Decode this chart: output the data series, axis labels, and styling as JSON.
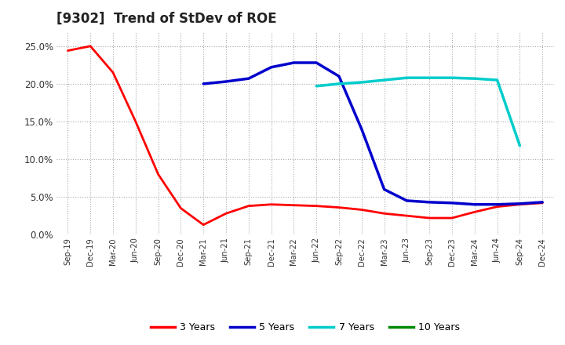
{
  "title": "[9302]  Trend of StDev of ROE",
  "background_color": "#ffffff",
  "plot_background_color": "#ffffff",
  "grid_color": "#aaaaaa",
  "x_labels": [
    "Sep-19",
    "Dec-19",
    "Mar-20",
    "Jun-20",
    "Sep-20",
    "Dec-20",
    "Mar-21",
    "Jun-21",
    "Sep-21",
    "Dec-21",
    "Mar-22",
    "Jun-22",
    "Sep-22",
    "Dec-22",
    "Mar-23",
    "Jun-23",
    "Sep-23",
    "Dec-23",
    "Mar-24",
    "Jun-24",
    "Sep-24",
    "Dec-24"
  ],
  "series": {
    "3 Years": {
      "color": "#ff0000",
      "linewidth": 2.0,
      "values": [
        0.244,
        0.25,
        0.215,
        0.15,
        0.08,
        0.035,
        0.013,
        0.028,
        0.038,
        0.04,
        0.039,
        0.038,
        0.036,
        0.033,
        0.028,
        0.025,
        0.022,
        0.022,
        0.03,
        0.037,
        0.04,
        0.042
      ]
    },
    "5 Years": {
      "color": "#0000cc",
      "linewidth": 2.5,
      "values": [
        null,
        null,
        null,
        null,
        null,
        null,
        0.2,
        0.203,
        0.207,
        0.222,
        0.228,
        0.228,
        0.21,
        0.14,
        0.06,
        0.045,
        0.043,
        0.042,
        0.04,
        0.04,
        0.041,
        0.043
      ]
    },
    "7 Years": {
      "color": "#00cccc",
      "linewidth": 2.5,
      "values": [
        null,
        null,
        null,
        null,
        null,
        null,
        null,
        null,
        null,
        null,
        null,
        0.197,
        0.2,
        0.202,
        0.205,
        0.208,
        0.208,
        0.208,
        0.207,
        0.205,
        0.118,
        null
      ]
    },
    "10 Years": {
      "color": "#008800",
      "linewidth": 2.0,
      "values": [
        null,
        null,
        null,
        null,
        null,
        null,
        null,
        null,
        null,
        null,
        null,
        null,
        null,
        null,
        null,
        null,
        null,
        null,
        null,
        null,
        null,
        null
      ]
    }
  },
  "ylim": [
    0.0,
    0.27
  ],
  "yticks": [
    0.0,
    0.05,
    0.1,
    0.15,
    0.2,
    0.25
  ],
  "ytick_labels": [
    "0.0%",
    "5.0%",
    "10.0%",
    "15.0%",
    "20.0%",
    "25.0%"
  ],
  "legend_labels": [
    "3 Years",
    "5 Years",
    "7 Years",
    "10 Years"
  ],
  "legend_colors": [
    "#ff0000",
    "#0000cc",
    "#00cccc",
    "#008800"
  ],
  "title_fontsize": 12,
  "xtick_fontsize": 7.2,
  "ytick_fontsize": 8.5,
  "legend_fontsize": 9
}
